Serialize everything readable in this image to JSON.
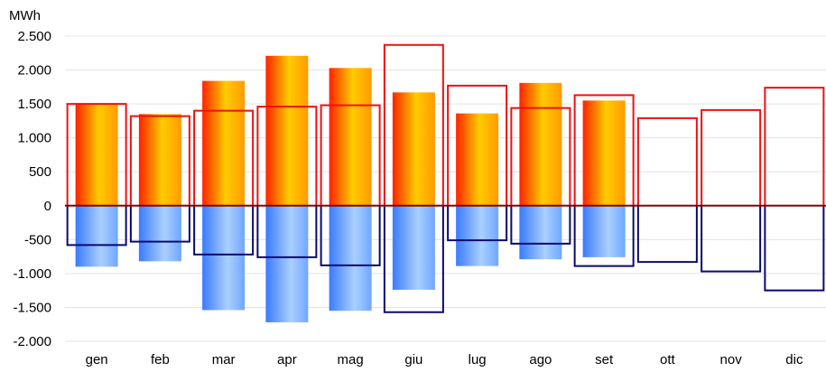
{
  "chart_data": {
    "type": "bar",
    "unit_label": "MWh",
    "categories": [
      "gen",
      "feb",
      "mar",
      "apr",
      "mag",
      "giu",
      "lug",
      "ago",
      "set",
      "ott",
      "nov",
      "dic"
    ],
    "ylim": [
      -2000,
      2500
    ],
    "yticks": [
      2500,
      2000,
      1500,
      1000,
      500,
      0,
      -500,
      -1000,
      -1500,
      -2000
    ],
    "ytick_labels": [
      "2.500",
      "2.000",
      "1.500",
      "1.000",
      "500",
      "0",
      "-500",
      "-1.000",
      "-1.500",
      "-2.000"
    ],
    "grid": true,
    "series": [
      {
        "values": [
          1510,
          1350,
          1840,
          2210,
          2030,
          1670,
          1360,
          1810,
          1550,
          null,
          null,
          null
        ],
        "color_top": "#ff2200",
        "color_mid": "#ffcc00"
      },
      {
        "values": [
          -900,
          -820,
          -1540,
          -1720,
          -1550,
          -1240,
          -890,
          -790,
          -760,
          null,
          null,
          null
        ],
        "color_edge": "#3a7bff",
        "color_mid": "#aad0ff"
      },
      {
        "values": [
          1500,
          1320,
          1400,
          1460,
          1480,
          2370,
          1770,
          1440,
          1630,
          1290,
          1410,
          1740
        ],
        "color": "#ee1111"
      },
      {
        "values": [
          -580,
          -530,
          -720,
          -760,
          -880,
          -1570,
          -510,
          -560,
          -890,
          -830,
          -970,
          -1250
        ],
        "color": "#0a0a6e"
      }
    ],
    "zero_line_color": "#8b0000"
  }
}
